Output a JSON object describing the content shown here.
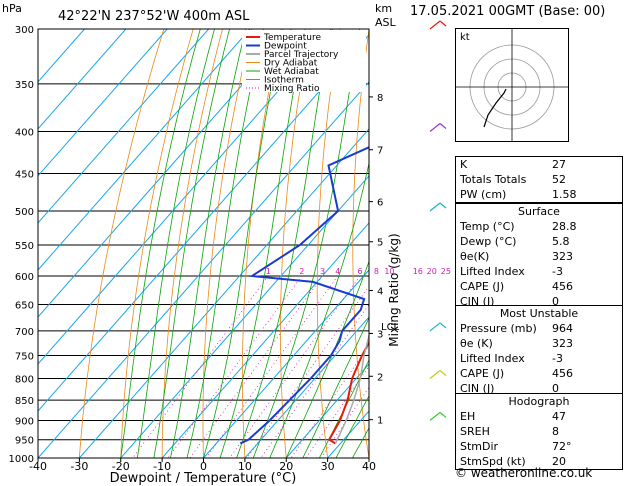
{
  "header": {
    "hpa_label": "hPa",
    "location": "42°22'N  237°52'W  400m  ASL",
    "km_label": "km",
    "asl_label": "ASL",
    "datetime": "17.05.2021  00GMT  (Base: 00)"
  },
  "legend": [
    "Temperature",
    "Dewpoint",
    "Parcel Trajectory",
    "Dry Adiabat",
    "Wet Adiabat",
    "Isotherm",
    "Mixing Ratio"
  ],
  "colors": {
    "temperature": "#e8190c",
    "dewpoint": "#1a3ccd",
    "parcel": "#aaaaaa",
    "dry_adiabat": "#e98a18",
    "wet_adiabat": "#0aa30a",
    "isotherm": "#19a7e8",
    "mixing_ratio": "#d01ab4"
  },
  "chart_data": {
    "type": "line",
    "title": "",
    "xlabel": "Dewpoint / Temperature (°C)",
    "ylabel": "Mixing Ratio (g/kg)",
    "x_ticks": [
      -40,
      -30,
      -20,
      -10,
      0,
      10,
      20,
      30,
      40
    ],
    "pressure_levels": [
      300,
      350,
      400,
      450,
      500,
      550,
      600,
      650,
      700,
      750,
      800,
      850,
      900,
      950,
      1000
    ],
    "km_ticks": [
      {
        "km": "8",
        "p": 363
      },
      {
        "km": "7",
        "p": 421
      },
      {
        "km": "6",
        "p": 487
      },
      {
        "km": "5",
        "p": 545
      },
      {
        "km": "4",
        "p": 625
      },
      {
        "km": "3",
        "p": 705
      },
      {
        "km": "2",
        "p": 795
      },
      {
        "km": "1",
        "p": 898
      }
    ],
    "lcl": {
      "label": "LCL",
      "p": 690
    },
    "mixing_ratio_labels": [
      "1",
      "2",
      "3",
      "4",
      "6",
      "8",
      "10",
      "16",
      "20",
      "25"
    ],
    "series": [
      {
        "name": "Temperature",
        "points": [
          [
            300,
            -6.5
          ],
          [
            350,
            -2
          ],
          [
            400,
            2
          ],
          [
            450,
            4.5
          ],
          [
            500,
            7
          ],
          [
            550,
            9.5
          ],
          [
            600,
            10
          ],
          [
            620,
            11
          ],
          [
            650,
            12.5
          ],
          [
            700,
            14.5
          ],
          [
            750,
            16.5
          ],
          [
            800,
            19
          ],
          [
            850,
            22.5
          ],
          [
            900,
            25
          ],
          [
            950,
            26.5
          ],
          [
            960,
            28.8
          ]
        ]
      },
      {
        "name": "Dewpoint",
        "points": [
          [
            300,
            -32
          ],
          [
            350,
            -28
          ],
          [
            400,
            -21
          ],
          [
            440,
            -32
          ],
          [
            500,
            -20
          ],
          [
            550,
            -22
          ],
          [
            600,
            -27
          ],
          [
            610,
            -11
          ],
          [
            640,
            5
          ],
          [
            660,
            6.5
          ],
          [
            700,
            6.5
          ],
          [
            720,
            8
          ],
          [
            750,
            9
          ],
          [
            800,
            9
          ],
          [
            850,
            8.5
          ],
          [
            900,
            8
          ],
          [
            950,
            7
          ],
          [
            960,
            5.8
          ]
        ]
      },
      {
        "name": "Parcel Trajectory",
        "points": [
          [
            300,
            -5
          ],
          [
            350,
            0
          ],
          [
            400,
            3.5
          ],
          [
            450,
            6.5
          ],
          [
            500,
            8
          ],
          [
            550,
            10
          ],
          [
            600,
            10.5
          ],
          [
            650,
            11.5
          ],
          [
            690,
            12.5
          ],
          [
            750,
            17
          ],
          [
            800,
            21
          ],
          [
            850,
            24
          ],
          [
            900,
            26.5
          ],
          [
            960,
            28.8
          ]
        ]
      }
    ],
    "wind_barbs": [
      {
        "p": 300,
        "label": "barb"
      },
      {
        "p": 400,
        "label": "barb"
      },
      {
        "p": 500,
        "label": "barb"
      },
      {
        "p": 700,
        "label": "barb"
      },
      {
        "p": 800,
        "label": "barb"
      },
      {
        "p": 900,
        "label": "barb"
      }
    ]
  },
  "hodograph": {
    "label": "kt"
  },
  "indices": [
    {
      "label": "K",
      "value": "27"
    },
    {
      "label": "Totals Totals",
      "value": "52"
    },
    {
      "label": "PW (cm)",
      "value": "1.58"
    }
  ],
  "surface": {
    "title": "Surface",
    "rows": [
      {
        "label": "Temp (°C)",
        "value": "28.8"
      },
      {
        "label": "Dewp (°C)",
        "value": "5.8"
      },
      {
        "label": "θe(K)",
        "value": "323"
      },
      {
        "label": "Lifted Index",
        "value": "-3"
      },
      {
        "label": "CAPE (J)",
        "value": "456"
      },
      {
        "label": "CIN (J)",
        "value": "0"
      }
    ]
  },
  "most_unstable": {
    "title": "Most Unstable",
    "rows": [
      {
        "label": "Pressure (mb)",
        "value": "964"
      },
      {
        "label": "θe (K)",
        "value": "323"
      },
      {
        "label": "Lifted Index",
        "value": "-3"
      },
      {
        "label": "CAPE (J)",
        "value": "456"
      },
      {
        "label": "CIN (J)",
        "value": "0"
      }
    ]
  },
  "hodo_table": {
    "title": "Hodograph",
    "rows": [
      {
        "label": "EH",
        "value": "47"
      },
      {
        "label": "SREH",
        "value": "8"
      },
      {
        "label": "StmDir",
        "value": "72°"
      },
      {
        "label": "StmSpd (kt)",
        "value": "20"
      }
    ]
  },
  "footer": "© weatheronline.co.uk"
}
